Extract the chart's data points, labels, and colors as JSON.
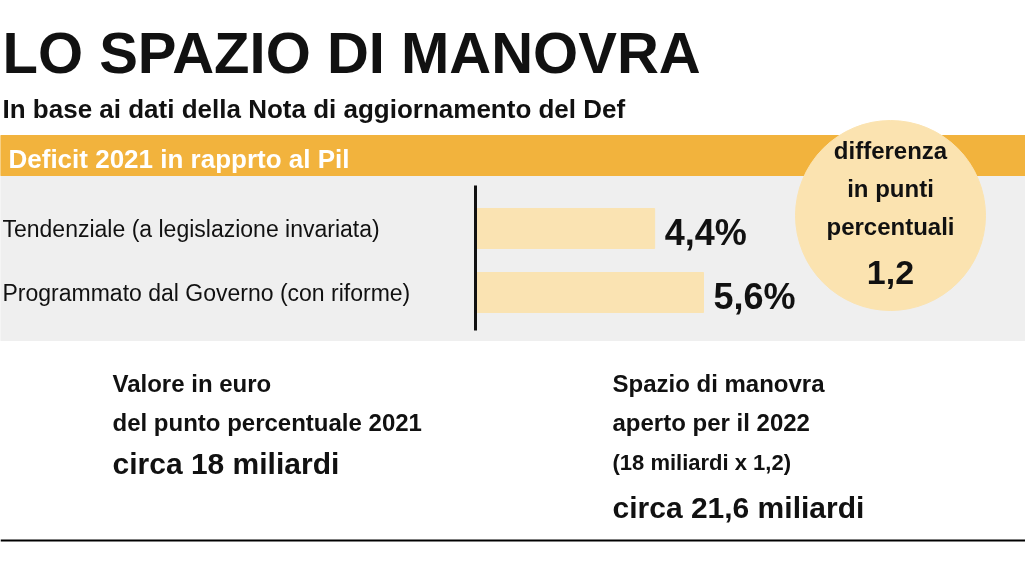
{
  "chart_data": {
    "type": "bar",
    "orientation": "horizontal",
    "title": "LO SPAZIO DI MANOVRA",
    "subtitle": "In base ai dati della Nota di aggiornamento del Def",
    "categories": [
      "Tendenziale (a legislazione invariata)",
      "Programmato dal Governo (con riforme)"
    ],
    "values": [
      4.4,
      5.6
    ],
    "value_labels": [
      "4,4%",
      "5,6%"
    ],
    "color": "#fae3b2",
    "annotations": [
      "Deficit 2021 in rapprto al Pil",
      "differenza\nin punti\npercentuali\n1,2",
      "Valore in euro\ndel punto percentuale 2021\ncirca 18 miliardi",
      "Spazio di manovra\naperto per il 2022\n(18 miliardi x 1,2)\ncirca 21,6 miliardi"
    ]
  }
}
